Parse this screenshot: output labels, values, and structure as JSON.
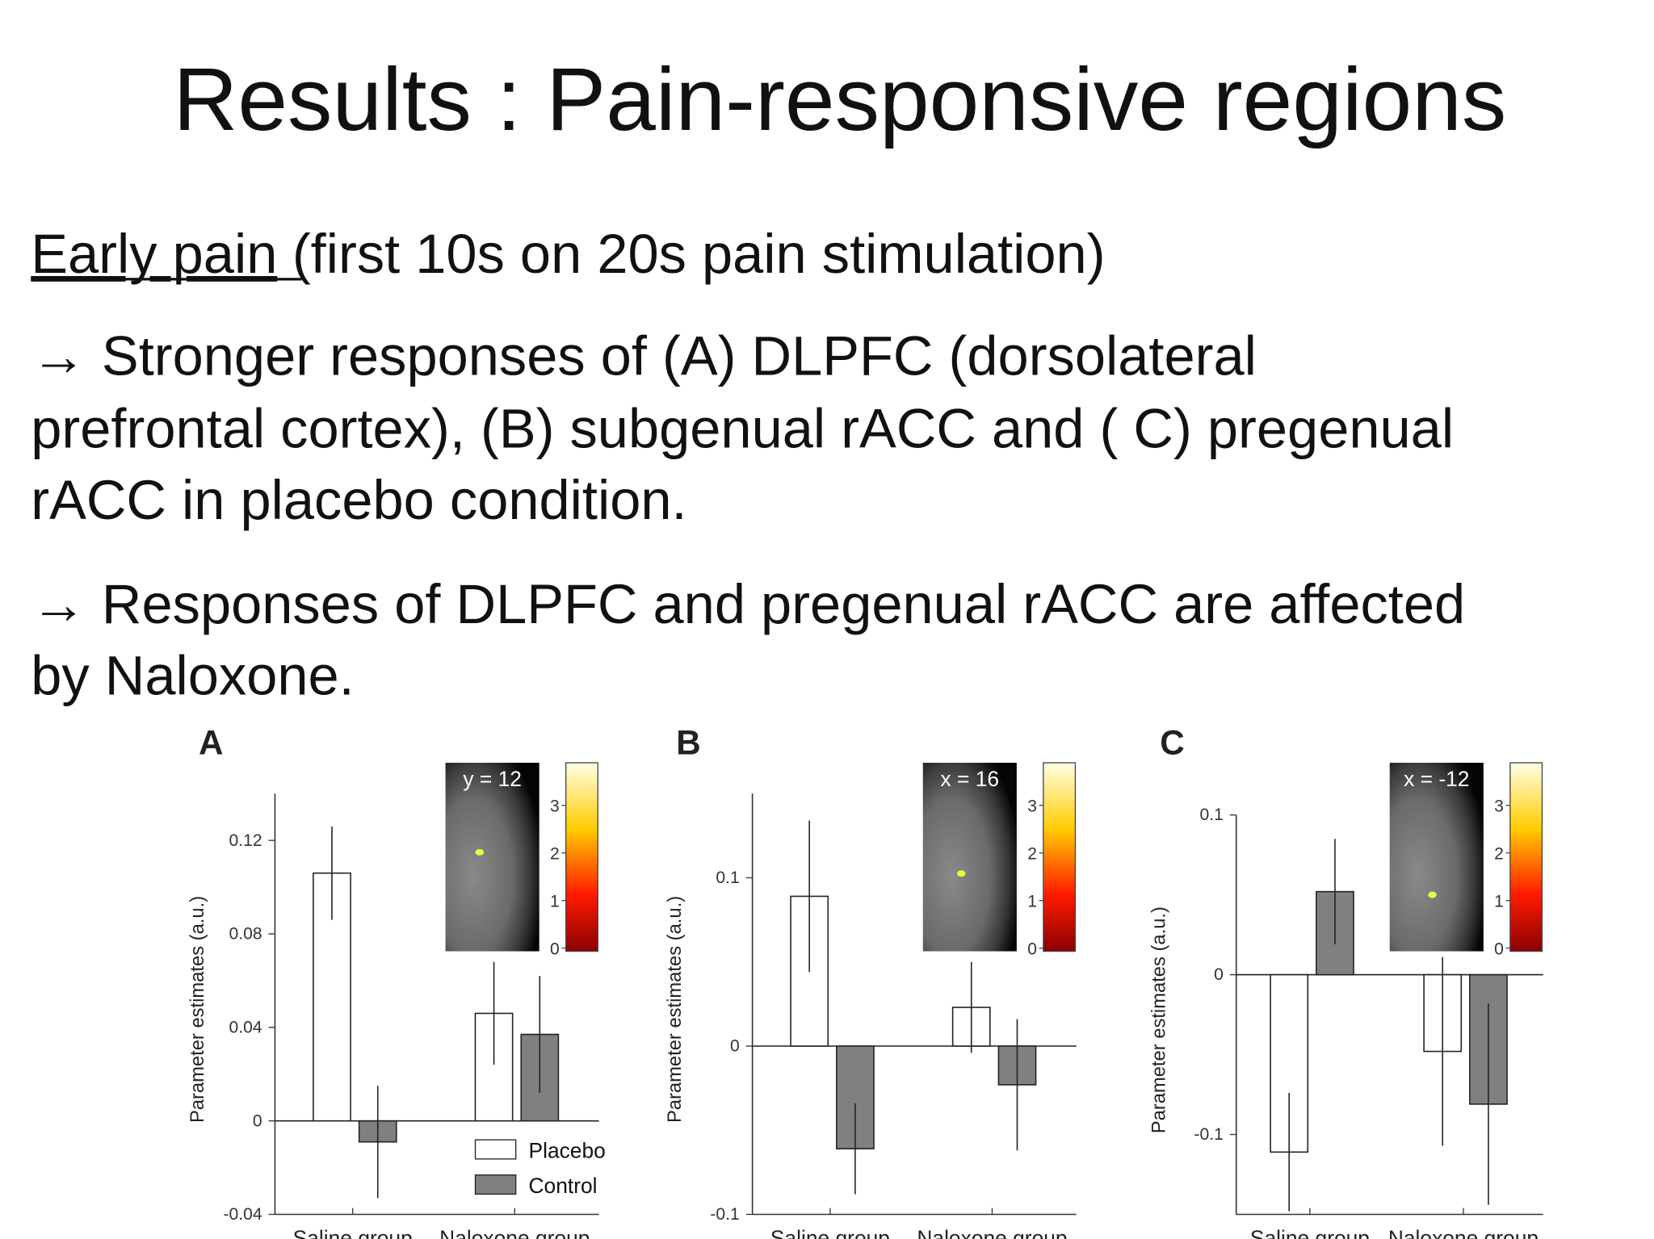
{
  "title": "Results : Pain-responsive regions",
  "subheading": {
    "underlined": "Early pain",
    "rest": "(first 10s on 20s pain stimulation)"
  },
  "bullets": [
    [
      "→ Stronger responses of (A) DLPFC (dorsolateral",
      "prefrontal cortex), (B) subgenual rACC and ( C) pregenual",
      "rACC in placebo condition."
    ],
    [
      "→ Responses of DLPFC and pregenual rACC are affected",
      "by Naloxone."
    ]
  ],
  "chart_data": [
    {
      "type": "bar",
      "panel": "A",
      "ylabel": "Parameter estimates (a.u.)",
      "categories": [
        "Saline group",
        "Naloxone group"
      ],
      "series": [
        {
          "name": "Placebo",
          "color": "#ffffff",
          "values": [
            0.106,
            0.046
          ],
          "errors": [
            0.02,
            0.022
          ]
        },
        {
          "name": "Control",
          "color": "#808080",
          "values": [
            -0.009,
            0.037
          ],
          "errors": [
            0.024,
            0.025
          ]
        }
      ],
      "ylim": [
        -0.04,
        0.14
      ],
      "yticks": [
        -0.04,
        0,
        0.04,
        0.08,
        0.12
      ],
      "legend": "lower right",
      "inset": {
        "label": "y = 12",
        "colorbar_ticks": [
          0,
          1,
          2,
          3
        ]
      }
    },
    {
      "type": "bar",
      "panel": "B",
      "ylabel": "Parameter estimates (a.u.)",
      "categories": [
        "Saline group",
        "Naloxone group"
      ],
      "series": [
        {
          "color": "#ffffff",
          "values": [
            0.089,
            0.023
          ],
          "errors": [
            0.045,
            0.027
          ]
        },
        {
          "color": "#808080",
          "values": [
            -0.061,
            -0.023
          ],
          "errors": [
            0.027,
            0.039
          ]
        }
      ],
      "ylim": [
        -0.1,
        0.15
      ],
      "yticks": [
        -0.1,
        0,
        0.1
      ],
      "inset": {
        "label": "x = 16",
        "colorbar_ticks": [
          0,
          1,
          2,
          3
        ]
      }
    },
    {
      "type": "bar",
      "panel": "C",
      "ylabel": "Parameter estimates (a.u.)",
      "categories": [
        "Saline group",
        "Naloxone group"
      ],
      "series": [
        {
          "color": "#ffffff",
          "values": [
            -0.111,
            -0.048
          ],
          "errors": [
            0.037,
            0.059
          ]
        },
        {
          "color": "#808080",
          "values": [
            0.052,
            -0.081
          ],
          "errors": [
            0.033,
            0.063
          ]
        }
      ],
      "ylim": [
        -0.15,
        0.1
      ],
      "yticks": [
        -0.1,
        0,
        0.1
      ],
      "inset": {
        "label": "x = -12",
        "colorbar_ticks": [
          0,
          1,
          2,
          3
        ]
      }
    }
  ]
}
